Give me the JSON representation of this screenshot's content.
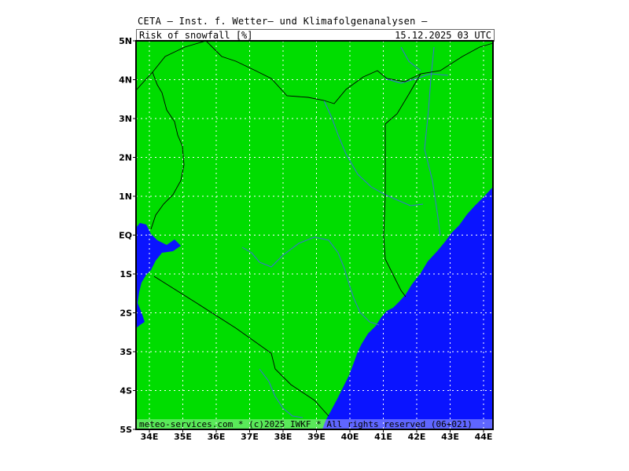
{
  "header": {
    "title": "CETA – Inst. f. Wetter– und Klimafolgenanalysen –",
    "parameter": "Risk_of_snowfall [%]",
    "timestamp": "15.12.2025 03 UTC"
  },
  "map": {
    "region": "Kenya",
    "land_color": "#00dd00",
    "water_color": "#0a14ff",
    "border_color": "#000000",
    "river_color": "#3a6fd8",
    "grid_color": "#ffffff",
    "lat_labels": [
      "5N",
      "4N",
      "3N",
      "2N",
      "1N",
      "EQ",
      "1S",
      "2S",
      "3S",
      "4S",
      "5S"
    ],
    "lon_labels": [
      "34E",
      "35E",
      "36E",
      "37E",
      "38E",
      "39E",
      "40E",
      "41E",
      "42E",
      "43E",
      "44E"
    ]
  },
  "footer": {
    "credit": "meteo-services.com * (c)2025 IWKF * All rights reserved (06+021)"
  }
}
